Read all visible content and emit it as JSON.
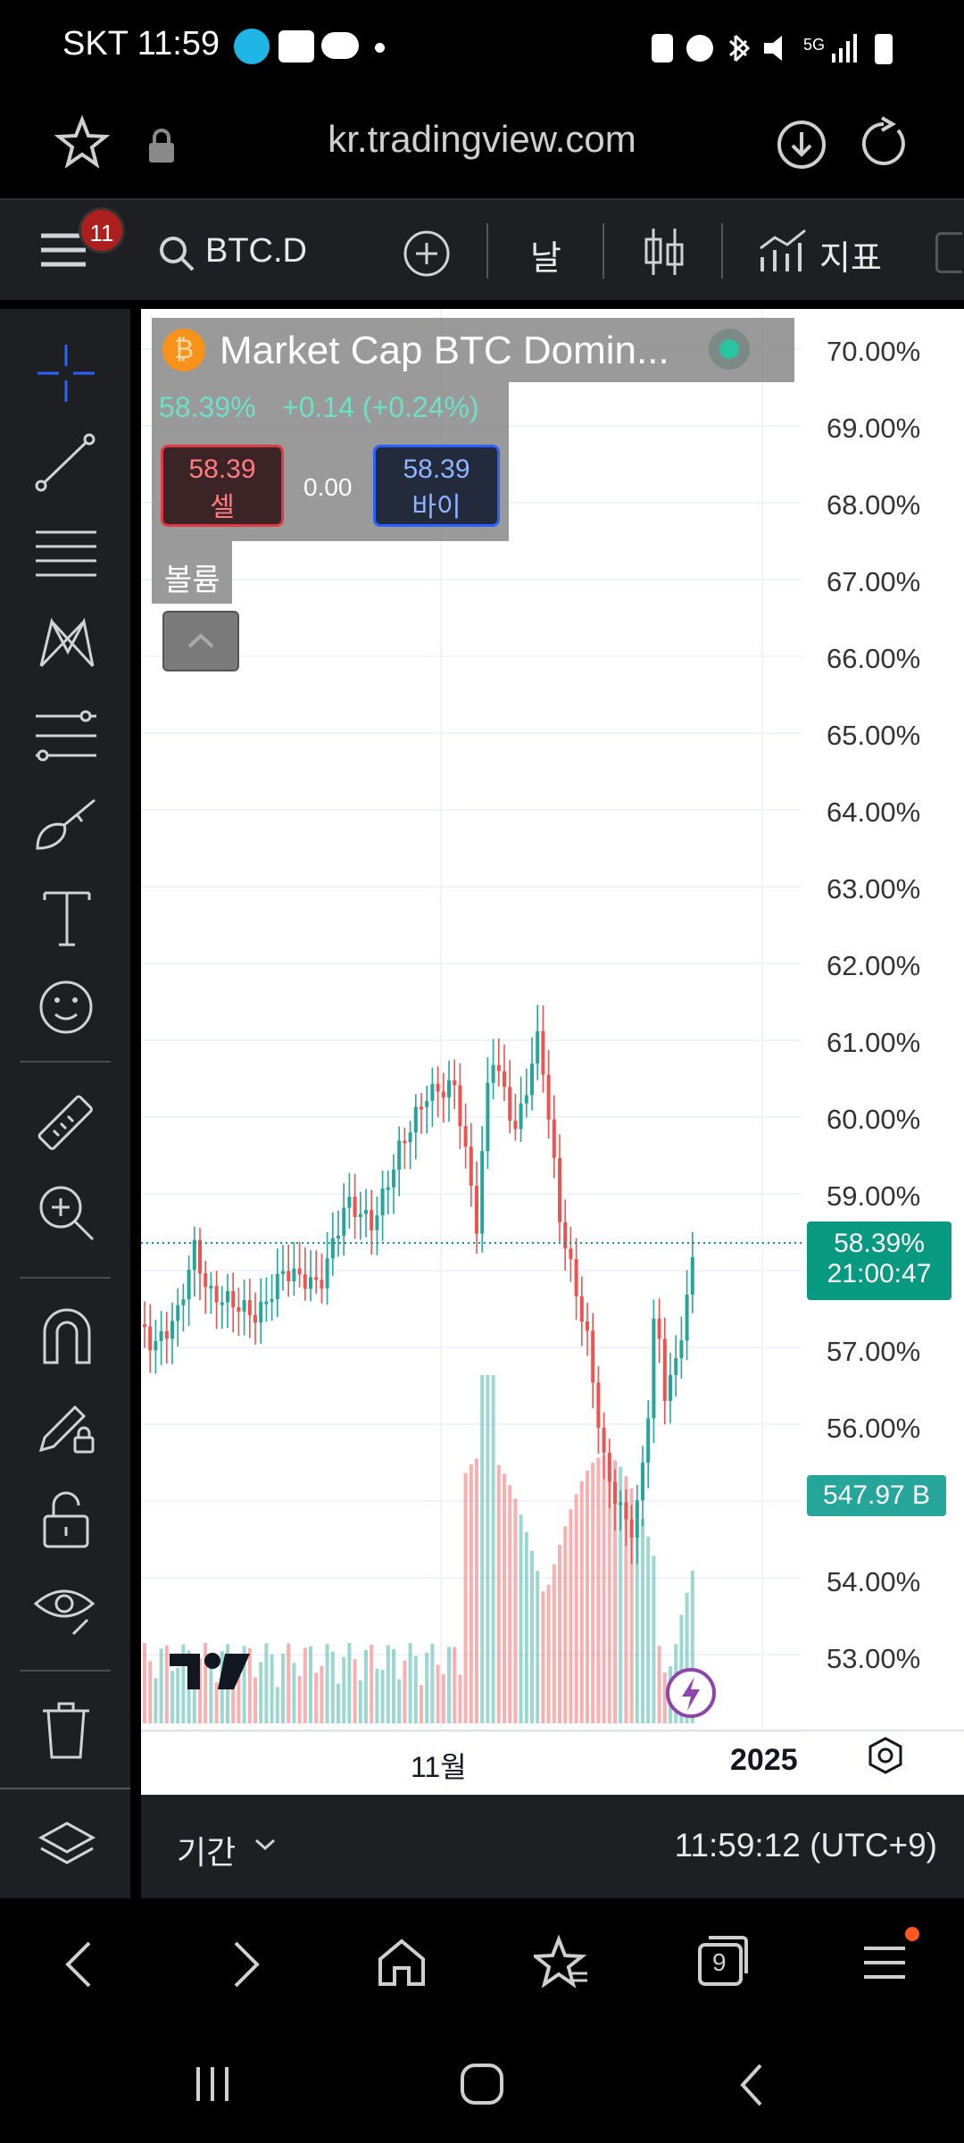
{
  "status_bar": {
    "carrier_time": "SKT 11:59"
  },
  "url_bar": {
    "url": "kr.tradingview.com"
  },
  "toolbar": {
    "menu_badge": "11",
    "symbol": "BTC.D",
    "interval": "날",
    "indicators_label": "지표"
  },
  "legend": {
    "title": "Market Cap BTC Domin...",
    "price_line": "58.39%",
    "change": "+0.14 (+0.24%)",
    "sell_price": "58.39",
    "sell_label": "셀",
    "spread": "0.00",
    "buy_price": "58.39",
    "buy_label": "바이",
    "volume_label": "볼륨"
  },
  "price_axis": {
    "labels": [
      "70.00%",
      "69.00%",
      "68.00%",
      "67.00%",
      "66.00%",
      "65.00%",
      "64.00%",
      "63.00%",
      "62.00%",
      "61.00%",
      "60.00%",
      "59.00%",
      "57.00%",
      "56.00%",
      "54.00%",
      "53.00%"
    ],
    "current_price": "58.39%",
    "countdown": "21:00:47",
    "volume_value": "547.97 B"
  },
  "time_axis": {
    "label_nov": "11월",
    "label_2025": "2025"
  },
  "bottom_bar": {
    "period_label": "기간",
    "clock": "11:59:12 (UTC+9)"
  },
  "browser_nav": {
    "tabs_count": "9"
  },
  "colors": {
    "up": "#26a69a",
    "down": "#ef5350",
    "accent_badge": "#ab1f1f",
    "price_tag": "#089981"
  }
}
